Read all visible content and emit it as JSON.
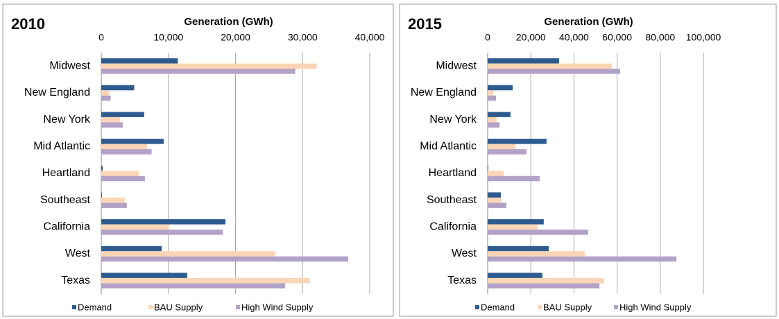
{
  "chart_data": [
    {
      "type": "bar",
      "orientation": "horizontal",
      "title": "2010",
      "x_label": "Generation (GWh)",
      "categories": [
        "Midwest",
        "New England",
        "New York",
        "Mid Atlantic",
        "Heartland",
        "Southeast",
        "California",
        "West",
        "Texas"
      ],
      "series": [
        {
          "name": "Demand",
          "color": "#2e5b8f",
          "values": [
            11400,
            4900,
            6400,
            9300,
            200,
            100,
            18500,
            9000,
            12800
          ]
        },
        {
          "name": "BAU Supply",
          "color": "#fcd5b5",
          "values": [
            32100,
            1200,
            2800,
            6800,
            5600,
            3500,
            10100,
            25900,
            31100
          ]
        },
        {
          "name": "High Wind Supply",
          "color": "#b3a2c7",
          "values": [
            28900,
            1400,
            3200,
            7500,
            6500,
            3800,
            18100,
            36800,
            27400
          ]
        }
      ],
      "xlim": [
        0,
        40000
      ],
      "xticks": [
        0,
        {
          "value": 10000,
          "label": "10,000"
        },
        {
          "value": 20000,
          "label": "20,000"
        },
        {
          "value": 30000,
          "label": "30,000"
        },
        {
          "value": 40000,
          "label": "40,000"
        }
      ],
      "grid": true,
      "legend": "bottom"
    },
    {
      "type": "bar",
      "orientation": "horizontal",
      "title": "2015",
      "x_label": "Generation (GWh)",
      "categories": [
        "Midwest",
        "New England",
        "New York",
        "Mid Atlantic",
        "Heartland",
        "Southeast",
        "California",
        "West",
        "Texas"
      ],
      "series": [
        {
          "name": "Demand",
          "color": "#2e5b8f",
          "values": [
            33100,
            11600,
            10600,
            27300,
            300,
            6100,
            26000,
            28300,
            25400
          ]
        },
        {
          "name": "BAU Supply",
          "color": "#fcd5b5",
          "values": [
            57600,
            2600,
            4200,
            12900,
            7400,
            6400,
            23200,
            45000,
            54000
          ]
        },
        {
          "name": "High Wind Supply",
          "color": "#b3a2c7",
          "values": [
            61400,
            3900,
            5500,
            18000,
            24100,
            8700,
            46600,
            87500,
            51800
          ]
        }
      ],
      "xlim": [
        0,
        100000
      ],
      "xticks": [
        0,
        {
          "value": 20000,
          "label": "20,000"
        },
        {
          "value": 40000,
          "label": "40,000"
        },
        {
          "value": 60000,
          "label": "60,000"
        },
        {
          "value": 80000,
          "label": "80,000"
        },
        {
          "value": 100000,
          "label": "100,000"
        }
      ],
      "grid": true,
      "legend": "bottom"
    }
  ]
}
